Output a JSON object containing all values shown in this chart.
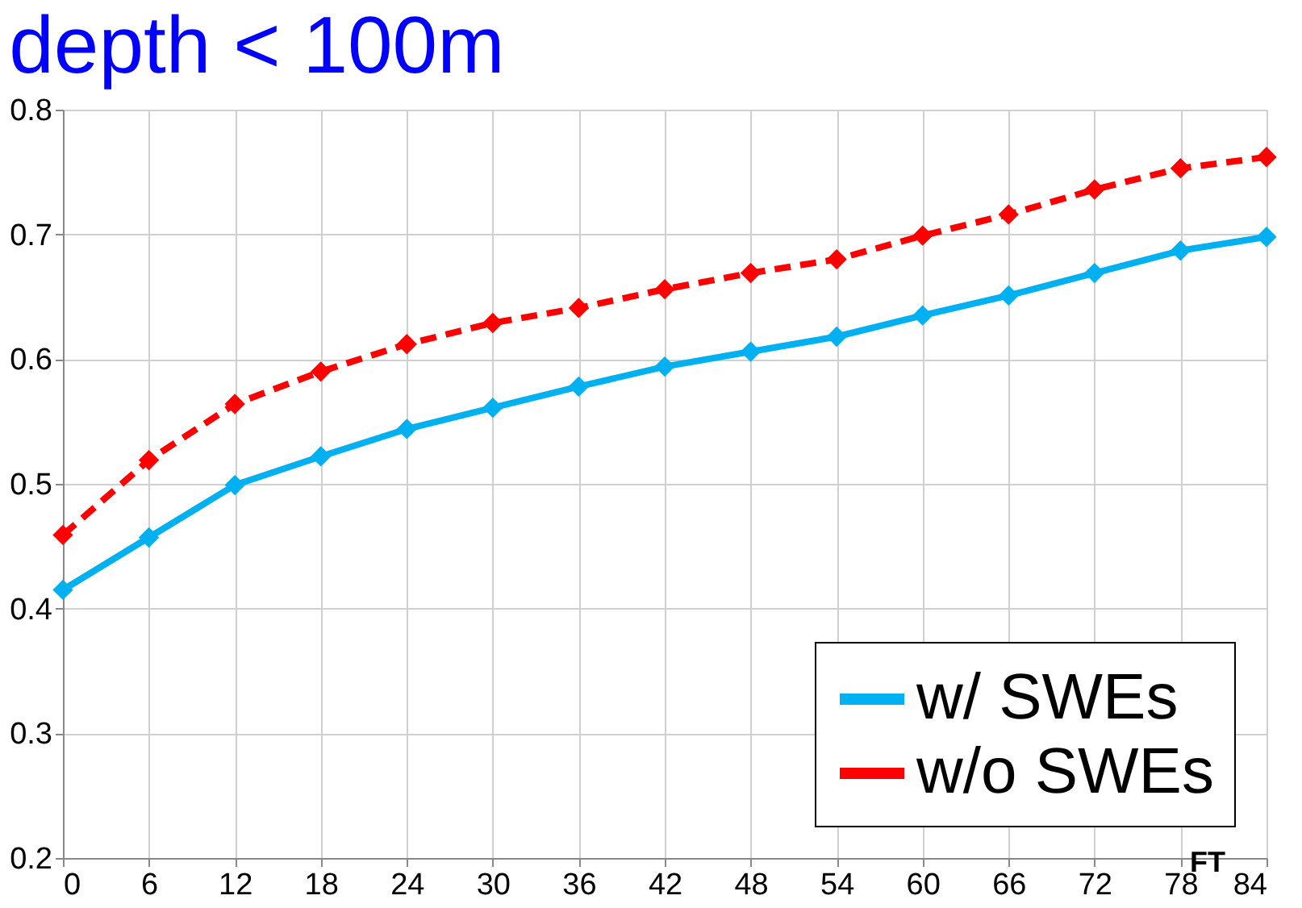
{
  "chart_data": {
    "type": "line",
    "title": "depth < 100m",
    "xlabel": "FT",
    "x": [
      0,
      6,
      12,
      18,
      24,
      30,
      36,
      42,
      48,
      54,
      60,
      66,
      72,
      78,
      84
    ],
    "series": [
      {
        "name": "w/ SWEs",
        "color": "#00b0f0",
        "line_style": "solid",
        "values": [
          0.415,
          0.457,
          0.499,
          0.522,
          0.544,
          0.561,
          0.578,
          0.594,
          0.606,
          0.618,
          0.635,
          0.651,
          0.669,
          0.687,
          0.698
        ]
      },
      {
        "name": "w/o SWEs",
        "color": "#ff0000",
        "line_style": "dashed",
        "values": [
          0.459,
          0.519,
          0.564,
          0.59,
          0.612,
          0.629,
          0.641,
          0.656,
          0.669,
          0.68,
          0.699,
          0.716,
          0.736,
          0.753,
          0.762
        ]
      }
    ],
    "xlim": [
      0,
      84
    ],
    "xticks": [
      0,
      6,
      12,
      18,
      24,
      30,
      36,
      42,
      48,
      54,
      60,
      66,
      72,
      78,
      84
    ],
    "ylim": [
      0.2,
      0.8
    ],
    "yticks": [
      0.2,
      0.3,
      0.4,
      0.5,
      0.6,
      0.7,
      0.8
    ],
    "grid": true,
    "legend": "bottom right",
    "marker": "diamond"
  }
}
